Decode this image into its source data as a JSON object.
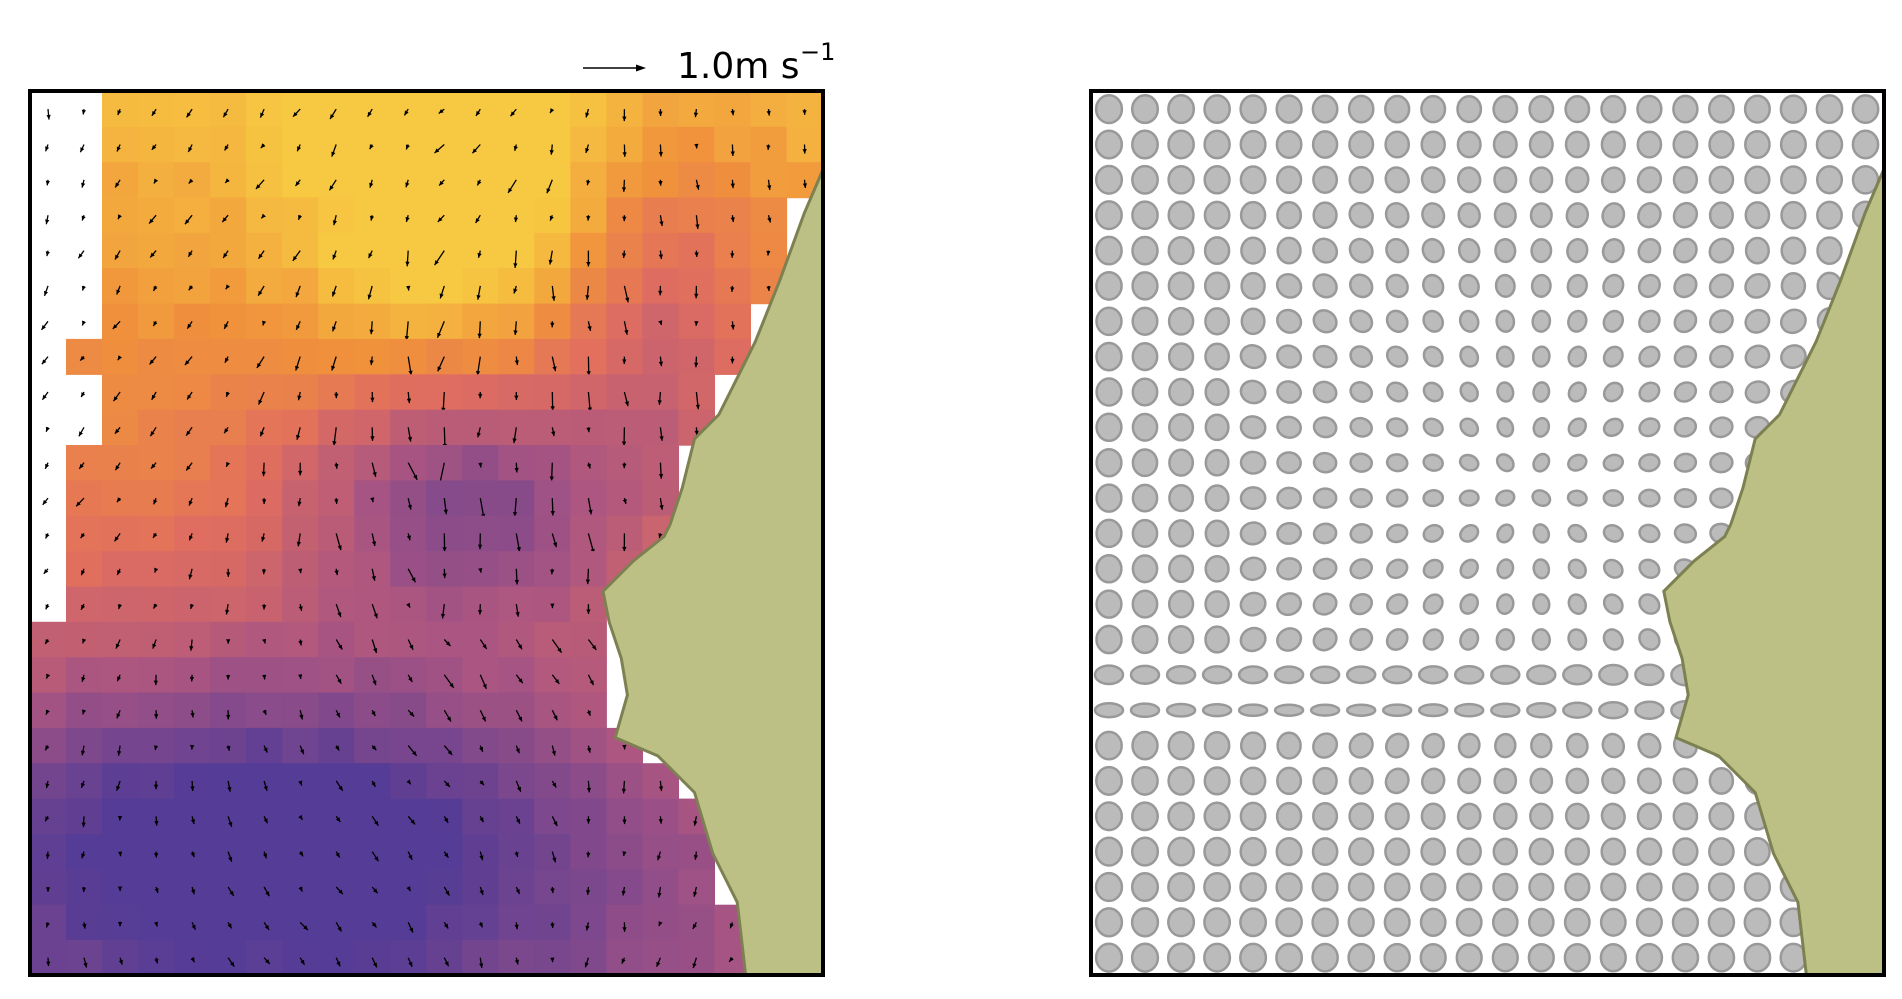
{
  "chart_data": {
    "type": "quiver",
    "key_label": "1.0m s",
    "key_label_sup": "−1"
  }
}
